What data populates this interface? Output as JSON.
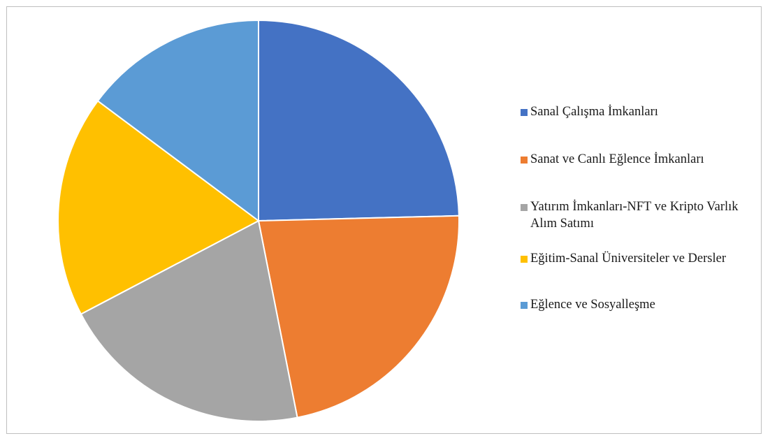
{
  "chart_data": {
    "type": "pie",
    "title": "",
    "slices": [
      {
        "label": "Sanal Çalışma İmkanları",
        "value": 24.6,
        "color": "#4472C4"
      },
      {
        "label": "Sanat ve Canlı Eğlence İmkanları",
        "value": 22.3,
        "color": "#ED7D31"
      },
      {
        "label": "Yatırım İmkanları-NFT ve Kripto Varlık Alım Satımı",
        "value": 20.4,
        "color": "#A5A5A5"
      },
      {
        "label": "Eğitim-Sanal Üniversiteler ve Dersler",
        "value": 17.9,
        "color": "#FFC000"
      },
      {
        "label": "Eğlence ve Sosyalleşme",
        "value": 14.8,
        "color": "#5B9BD5"
      }
    ],
    "legend_position": "right"
  }
}
